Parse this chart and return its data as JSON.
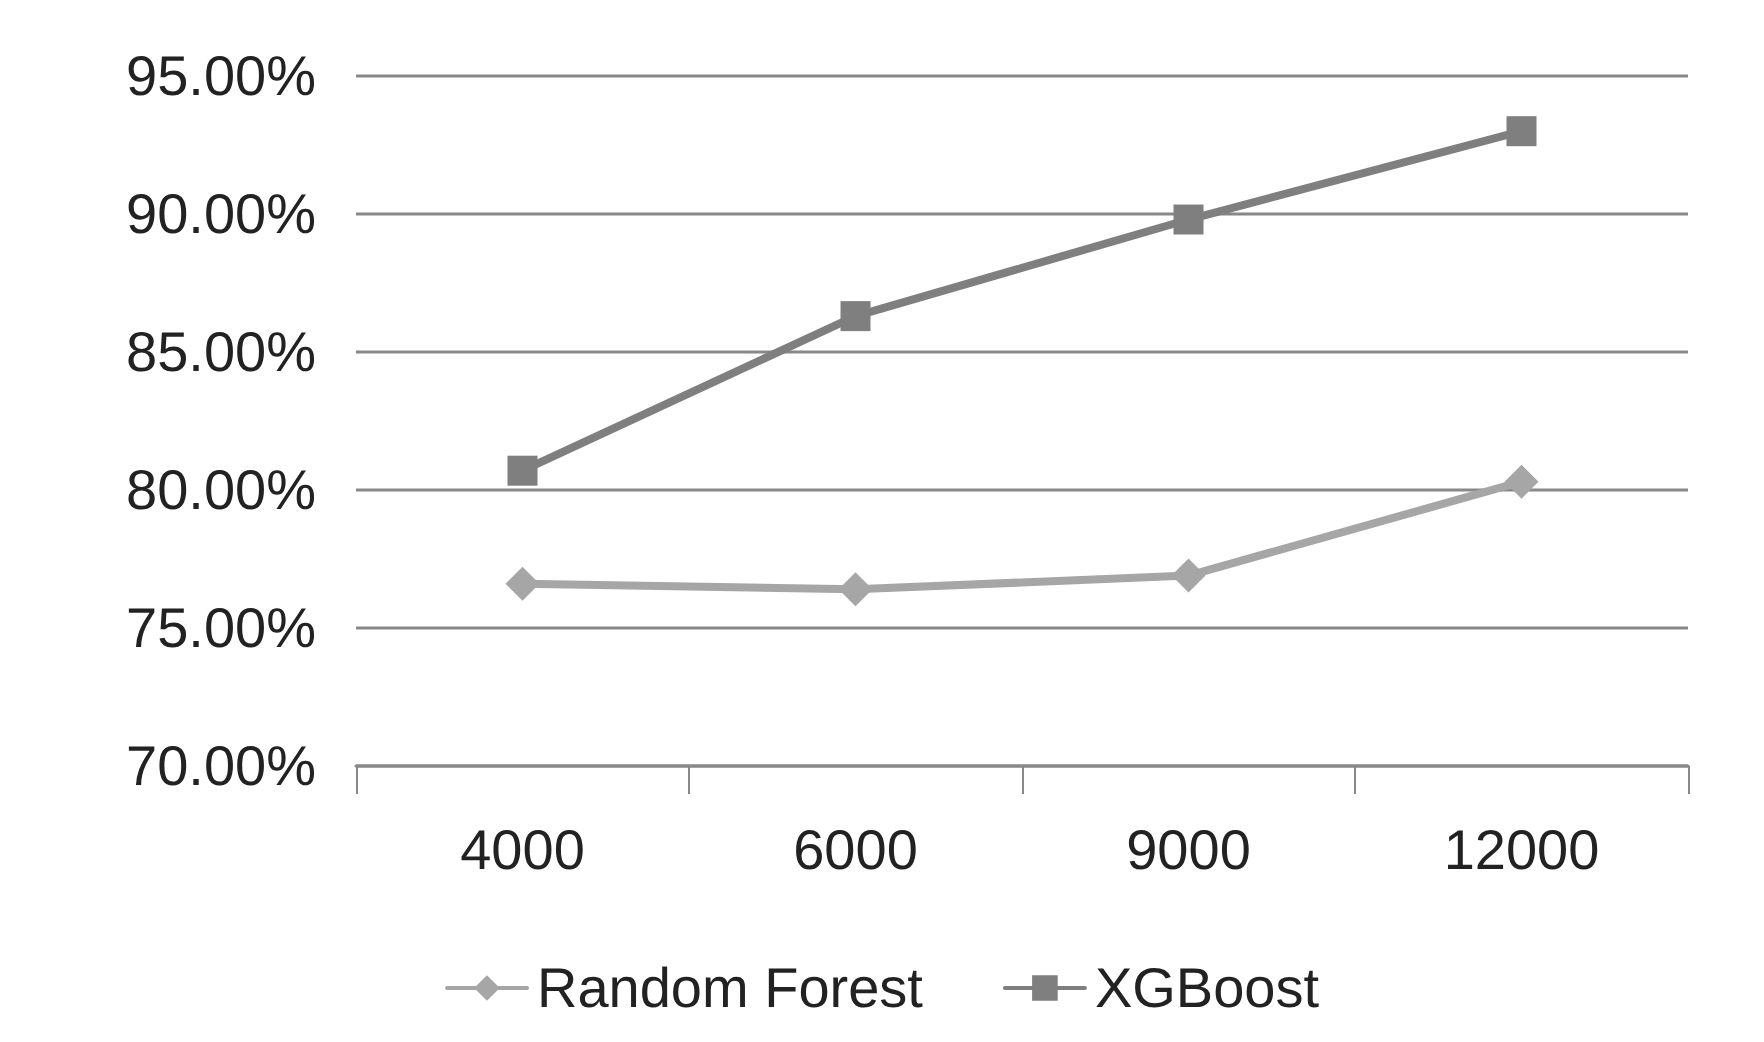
{
  "chart_data": {
    "type": "line",
    "categories": [
      "4000",
      "6000",
      "9000",
      "12000"
    ],
    "series": [
      {
        "name": "Random Forest",
        "color": "#a6a6a6",
        "values": [
          76.6,
          76.4,
          76.9,
          80.3
        ],
        "marker": "diamond"
      },
      {
        "name": "XGBoost",
        "color": "#7f7f7f",
        "values": [
          80.7,
          86.3,
          89.8,
          93.0
        ],
        "marker": "square"
      }
    ],
    "ylim": [
      70,
      95
    ],
    "yticks": [
      {
        "value": 70,
        "label": "70.00%"
      },
      {
        "value": 75,
        "label": "75.00%"
      },
      {
        "value": 80,
        "label": "80.00%"
      },
      {
        "value": 85,
        "label": "85.00%"
      },
      {
        "value": 90,
        "label": "90.00%"
      },
      {
        "value": 95,
        "label": "95.00%"
      }
    ],
    "grid": "y",
    "legend": "bottom",
    "line_style": "solid"
  }
}
